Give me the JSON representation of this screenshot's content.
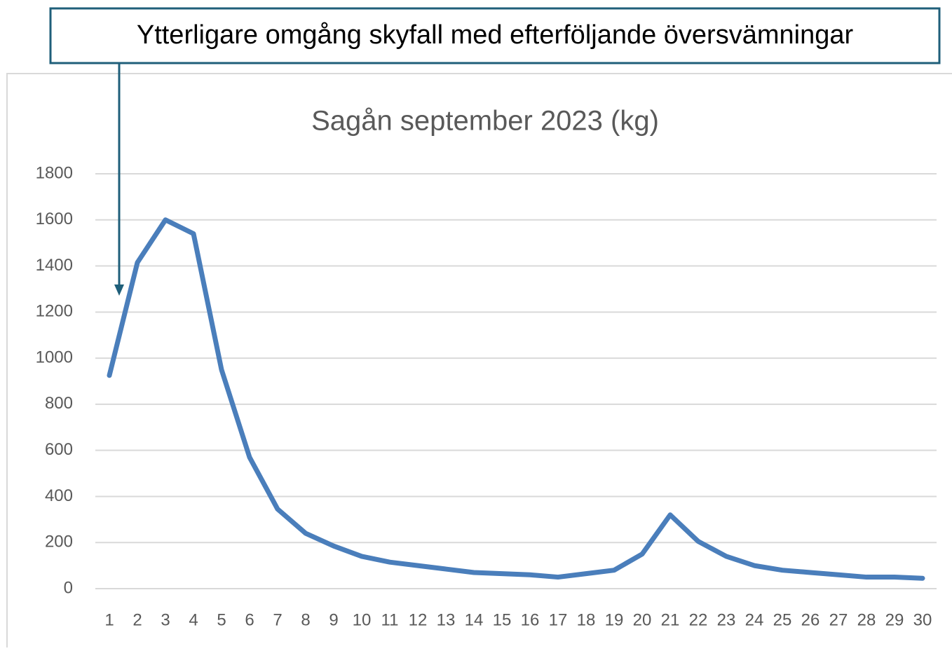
{
  "annotation": "Ytterligare omgång skyfall med efterföljande översvämningar",
  "chart_data": {
    "type": "line",
    "title": "Sagån september 2023 (kg)",
    "categories": [
      "1",
      "2",
      "3",
      "4",
      "5",
      "6",
      "7",
      "8",
      "9",
      "10",
      "11",
      "12",
      "13",
      "14",
      "15",
      "16",
      "17",
      "18",
      "19",
      "20",
      "21",
      "22",
      "23",
      "24",
      "25",
      "26",
      "27",
      "28",
      "29",
      "30"
    ],
    "series": [
      {
        "name": "Sagån",
        "color": "#4a7ebb",
        "values": [
          925,
          1415,
          1600,
          1540,
          950,
          570,
          345,
          240,
          185,
          140,
          115,
          100,
          85,
          70,
          65,
          60,
          50,
          65,
          80,
          150,
          320,
          205,
          140,
          100,
          80,
          70,
          60,
          50,
          50,
          45
        ]
      }
    ],
    "ylim": [
      0,
      1800
    ],
    "yticks": [
      0,
      200,
      400,
      600,
      800,
      1000,
      1200,
      1400,
      1600,
      1800
    ],
    "grid": true
  }
}
